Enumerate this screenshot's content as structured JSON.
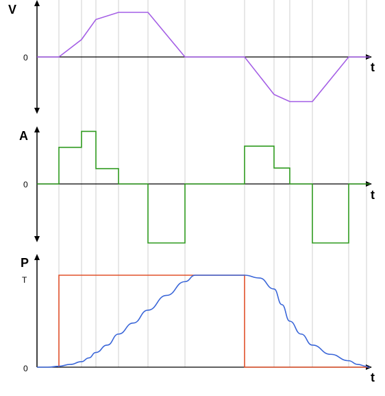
{
  "chart_data": [
    {
      "type": "line",
      "ylabel": "V",
      "xlabel": "t",
      "y_tick_labels": [
        "0"
      ],
      "colors": {
        "series": "#a45ee5",
        "axis": "#000000",
        "grid": "#cfcfcf"
      },
      "x": [
        0,
        1,
        2,
        3,
        4,
        5,
        6,
        7,
        8,
        9,
        10,
        11,
        12,
        13,
        14
      ],
      "series": [
        {
          "values": [
            0,
            0,
            0.39,
            0.84,
            1,
            1,
            0,
            0,
            0,
            -0.84,
            -1,
            -1,
            0,
            0,
            0
          ]
        }
      ],
      "ylim": [
        -1.2,
        1.2
      ]
    },
    {
      "type": "line",
      "ylabel": "A",
      "xlabel": "t",
      "y_tick_labels": [
        "0"
      ],
      "colors": {
        "series": "#2e9a1e",
        "axis": "#000000",
        "grid": "#cfcfcf"
      },
      "x": [
        0,
        1,
        2,
        3,
        4,
        5,
        6,
        7,
        8,
        9,
        10,
        11,
        12,
        13,
        14
      ],
      "series": [
        {
          "step": true,
          "values": [
            0,
            0.62,
            0.89,
            0.26,
            0,
            -1,
            0,
            0,
            0.64,
            0.27,
            0,
            -1,
            0,
            0,
            0
          ]
        }
      ],
      "ylim": [
        -1.1,
        1.1
      ]
    },
    {
      "type": "line",
      "ylabel": "P",
      "xlabel": "t",
      "y_tick_labels": [
        "0",
        "T"
      ],
      "colors": {
        "target": "#e0502a",
        "actual": "#3a66d8",
        "axis": "#000000",
        "grid": "#cfcfcf"
      },
      "target": {
        "x": [
          1,
          1,
          8,
          8,
          14
        ],
        "values": [
          0,
          1,
          1,
          0,
          0
        ]
      },
      "actual": {
        "x": [
          0,
          0.5,
          1,
          1.5,
          2,
          2.5,
          3,
          3.5,
          4,
          4.5,
          5,
          5.5,
          6,
          6.5,
          7,
          7.5,
          8,
          8.5,
          9,
          9.5,
          10,
          10.5,
          11,
          11.5,
          12,
          12.5,
          13,
          13.5,
          14
        ],
        "values": [
          0,
          0,
          0.01,
          0.03,
          0.06,
          0.1,
          0.16,
          0.24,
          0.36,
          0.48,
          0.62,
          0.78,
          0.93,
          1,
          1,
          1,
          1,
          0.97,
          0.85,
          0.68,
          0.5,
          0.36,
          0.24,
          0.14,
          0.07,
          0.03,
          0.01,
          0,
          0
        ]
      },
      "ylim": [
        0,
        1.1
      ]
    }
  ],
  "gridlines_x": [
    1,
    2,
    3,
    4,
    5,
    6,
    8,
    9,
    10,
    11,
    12,
    13
  ]
}
